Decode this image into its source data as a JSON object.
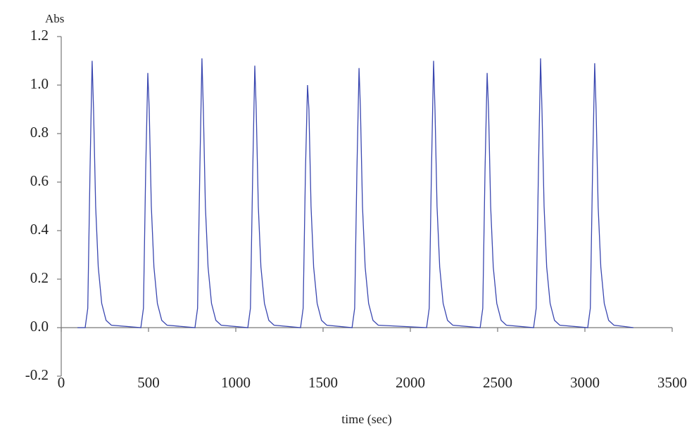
{
  "chart_data": {
    "type": "line",
    "ylabel": "Abs",
    "xlabel": "time (sec)",
    "color": "#3a47b0",
    "x": [
      93,
      137,
      152,
      165,
      177,
      185,
      197,
      212,
      232,
      257,
      287,
      456,
      471,
      484,
      496,
      504,
      516,
      531,
      551,
      576,
      606,
      766,
      781,
      794,
      806,
      814,
      826,
      841,
      861,
      886,
      916,
      1069,
      1084,
      1097,
      1109,
      1117,
      1129,
      1144,
      1164,
      1189,
      1219,
      1371,
      1386,
      1399,
      1411,
      1419,
      1431,
      1446,
      1466,
      1491,
      1521,
      1666,
      1681,
      1694,
      1706,
      1714,
      1726,
      1741,
      1761,
      1786,
      1816,
      2093,
      2108,
      2121,
      2133,
      2141,
      2153,
      2168,
      2188,
      2213,
      2243,
      2400,
      2415,
      2428,
      2440,
      2448,
      2460,
      2475,
      2495,
      2520,
      2550,
      2706,
      2721,
      2734,
      2746,
      2754,
      2766,
      2781,
      2801,
      2826,
      2856,
      3016,
      3031,
      3044,
      3056,
      3064,
      3076,
      3091,
      3111,
      3136,
      3166,
      3278
    ],
    "values": [
      0,
      0,
      0.08,
      0.65,
      1.1,
      0.9,
      0.5,
      0.25,
      0.1,
      0.03,
      0.01,
      0,
      0.08,
      0.65,
      1.05,
      0.9,
      0.5,
      0.25,
      0.1,
      0.03,
      0.01,
      0,
      0.08,
      0.65,
      1.11,
      0.9,
      0.5,
      0.25,
      0.1,
      0.03,
      0.01,
      0,
      0.08,
      0.65,
      1.08,
      0.9,
      0.5,
      0.25,
      0.1,
      0.03,
      0.01,
      0,
      0.08,
      0.65,
      1.0,
      0.9,
      0.5,
      0.25,
      0.1,
      0.03,
      0.01,
      0,
      0.08,
      0.65,
      1.07,
      0.9,
      0.5,
      0.25,
      0.1,
      0.03,
      0.01,
      0,
      0.08,
      0.65,
      1.1,
      0.9,
      0.5,
      0.25,
      0.1,
      0.03,
      0.01,
      0,
      0.08,
      0.65,
      1.05,
      0.9,
      0.5,
      0.25,
      0.1,
      0.03,
      0.01,
      0,
      0.08,
      0.65,
      1.11,
      0.9,
      0.5,
      0.25,
      0.1,
      0.03,
      0.01,
      0,
      0.08,
      0.65,
      1.09,
      0.9,
      0.5,
      0.25,
      0.1,
      0.03,
      0.01,
      0
    ],
    "xlim": [
      0,
      3500
    ],
    "xticks": [
      0,
      500,
      1000,
      1500,
      2000,
      2500,
      3000,
      3500
    ],
    "ylim": [
      -0.2,
      1.2
    ],
    "yticks": [
      -0.2,
      {
        "value": 0,
        "label": "0.0"
      },
      0.2,
      0.4,
      0.6,
      0.8,
      {
        "value": 1,
        "label": "1.0"
      },
      1.2
    ]
  }
}
